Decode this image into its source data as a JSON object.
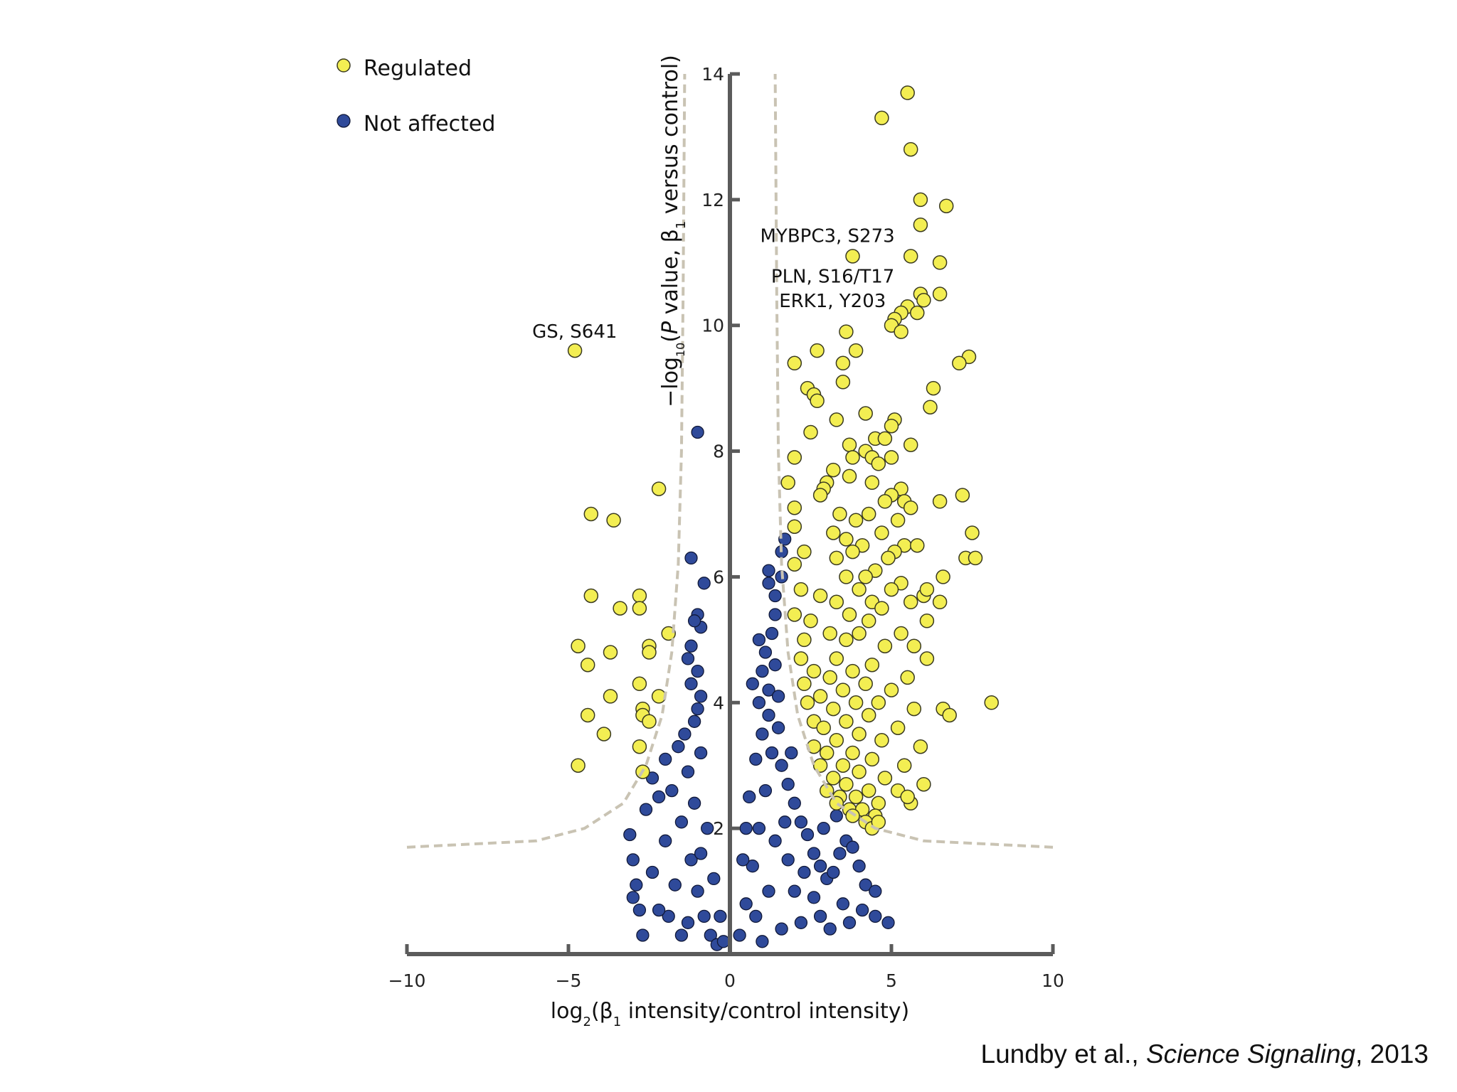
{
  "citation": {
    "authors": "Lundby et al., ",
    "journal": "Science Signaling",
    "year": ", 2013"
  },
  "chart_data": {
    "type": "scatter",
    "xlim": [
      -10,
      10
    ],
    "ylim": [
      0,
      14
    ],
    "x_ticks": [
      "−10",
      "−5",
      "0",
      "5",
      "10"
    ],
    "y_ticks": [
      "2",
      "4",
      "6",
      "8",
      "10",
      "12",
      "14"
    ],
    "xlabel": {
      "prefix": "log",
      "sub1": "2",
      "mid": "(β",
      "sub2": "1",
      "suffix": " intensity/control intensity)"
    },
    "ylabel": {
      "prefix": "−log",
      "sub1": "10",
      "mid1": "(",
      "italic": "P",
      "mid2": " value, β",
      "sub2": "1",
      "suffix": " versus control)"
    },
    "legend": {
      "position": "top-left",
      "entries": [
        "Regulated",
        "Not affected"
      ]
    },
    "colors": {
      "regulated": "#f3ee52",
      "not_affected": "#2f4a9a",
      "threshold": "#c9c3b3"
    },
    "annotations": [
      {
        "text": "GS, S641",
        "x": -4.8,
        "y": 9.6
      },
      {
        "text": "MYBPC3, S273",
        "x": 3.8,
        "y": 11.1
      },
      {
        "text": "PLN, S16/T17",
        "x": 5.9,
        "y": 10.5
      },
      {
        "text": "ERK1, Y203",
        "x": 5.6,
        "y": 10.2
      }
    ],
    "series": [
      {
        "name": "Regulated",
        "points": [
          [
            5.5,
            13.7
          ],
          [
            4.7,
            13.3
          ],
          [
            5.6,
            12.8
          ],
          [
            5.9,
            12.0
          ],
          [
            6.7,
            11.9
          ],
          [
            5.9,
            11.6
          ],
          [
            3.8,
            11.1
          ],
          [
            5.6,
            11.1
          ],
          [
            6.5,
            11.0
          ],
          [
            5.9,
            10.5
          ],
          [
            6.5,
            10.5
          ],
          [
            6.0,
            10.4
          ],
          [
            5.5,
            10.3
          ],
          [
            5.3,
            10.2
          ],
          [
            5.8,
            10.2
          ],
          [
            5.1,
            10.1
          ],
          [
            5.0,
            10.0
          ],
          [
            3.6,
            9.9
          ],
          [
            5.3,
            9.9
          ],
          [
            3.9,
            9.6
          ],
          [
            2.7,
            9.6
          ],
          [
            7.4,
            9.5
          ],
          [
            7.1,
            9.4
          ],
          [
            2.0,
            9.4
          ],
          [
            3.5,
            9.4
          ],
          [
            3.5,
            9.1
          ],
          [
            2.4,
            9.0
          ],
          [
            6.3,
            9.0
          ],
          [
            2.6,
            8.9
          ],
          [
            2.7,
            8.8
          ],
          [
            6.2,
            8.7
          ],
          [
            4.2,
            8.6
          ],
          [
            3.3,
            8.5
          ],
          [
            5.1,
            8.5
          ],
          [
            5.0,
            8.4
          ],
          [
            4.5,
            8.2
          ],
          [
            2.5,
            8.3
          ],
          [
            4.8,
            8.2
          ],
          [
            5.6,
            8.1
          ],
          [
            3.7,
            8.1
          ],
          [
            4.2,
            8.0
          ],
          [
            3.8,
            7.9
          ],
          [
            5.0,
            7.9
          ],
          [
            4.4,
            7.9
          ],
          [
            2.0,
            7.9
          ],
          [
            4.6,
            7.8
          ],
          [
            3.2,
            7.7
          ],
          [
            3.0,
            7.5
          ],
          [
            3.7,
            7.6
          ],
          [
            4.4,
            7.5
          ],
          [
            1.8,
            7.5
          ],
          [
            2.9,
            7.4
          ],
          [
            5.3,
            7.4
          ],
          [
            5.0,
            7.3
          ],
          [
            2.8,
            7.3
          ],
          [
            7.2,
            7.3
          ],
          [
            6.5,
            7.2
          ],
          [
            5.4,
            7.2
          ],
          [
            4.8,
            7.2
          ],
          [
            2.0,
            7.1
          ],
          [
            5.6,
            7.1
          ],
          [
            3.4,
            7.0
          ],
          [
            4.3,
            7.0
          ],
          [
            3.9,
            6.9
          ],
          [
            5.2,
            6.9
          ],
          [
            2.0,
            6.8
          ],
          [
            3.2,
            6.7
          ],
          [
            4.7,
            6.7
          ],
          [
            7.5,
            6.7
          ],
          [
            3.6,
            6.6
          ],
          [
            5.4,
            6.5
          ],
          [
            5.8,
            6.5
          ],
          [
            4.1,
            6.5
          ],
          [
            2.3,
            6.4
          ],
          [
            5.1,
            6.4
          ],
          [
            3.8,
            6.4
          ],
          [
            3.3,
            6.3
          ],
          [
            4.9,
            6.3
          ],
          [
            7.3,
            6.3
          ],
          [
            7.6,
            6.3
          ],
          [
            2.0,
            6.2
          ],
          [
            4.5,
            6.1
          ],
          [
            4.2,
            6.0
          ],
          [
            3.6,
            6.0
          ],
          [
            6.6,
            6.0
          ],
          [
            5.3,
            5.9
          ],
          [
            5.0,
            5.8
          ],
          [
            2.2,
            5.8
          ],
          [
            4.0,
            5.8
          ],
          [
            6.0,
            5.7
          ],
          [
            6.1,
            5.8
          ],
          [
            2.8,
            5.7
          ],
          [
            3.3,
            5.6
          ],
          [
            4.4,
            5.6
          ],
          [
            6.5,
            5.6
          ],
          [
            5.6,
            5.6
          ],
          [
            4.7,
            5.5
          ],
          [
            3.7,
            5.4
          ],
          [
            2.0,
            5.4
          ],
          [
            2.5,
            5.3
          ],
          [
            6.1,
            5.3
          ],
          [
            4.3,
            5.3
          ],
          [
            5.3,
            5.1
          ],
          [
            3.1,
            5.1
          ],
          [
            4.0,
            5.1
          ],
          [
            3.6,
            5.0
          ],
          [
            2.3,
            5.0
          ],
          [
            5.7,
            4.9
          ],
          [
            4.8,
            4.9
          ],
          [
            6.1,
            4.7
          ],
          [
            3.3,
            4.7
          ],
          [
            2.2,
            4.7
          ],
          [
            4.4,
            4.6
          ],
          [
            2.6,
            4.5
          ],
          [
            3.8,
            4.5
          ],
          [
            5.5,
            4.4
          ],
          [
            3.1,
            4.4
          ],
          [
            4.2,
            4.3
          ],
          [
            2.3,
            4.3
          ],
          [
            5.0,
            4.2
          ],
          [
            3.5,
            4.2
          ],
          [
            2.8,
            4.1
          ],
          [
            4.6,
            4.0
          ],
          [
            3.9,
            4.0
          ],
          [
            2.4,
            4.0
          ],
          [
            5.7,
            3.9
          ],
          [
            3.2,
            3.9
          ],
          [
            6.6,
            3.9
          ],
          [
            6.8,
            3.8
          ],
          [
            8.1,
            4.0
          ],
          [
            4.3,
            3.8
          ],
          [
            2.6,
            3.7
          ],
          [
            3.6,
            3.7
          ],
          [
            5.2,
            3.6
          ],
          [
            2.9,
            3.6
          ],
          [
            4.0,
            3.5
          ],
          [
            3.3,
            3.4
          ],
          [
            4.7,
            3.4
          ],
          [
            2.6,
            3.3
          ],
          [
            5.9,
            3.3
          ],
          [
            3.8,
            3.2
          ],
          [
            3.0,
            3.2
          ],
          [
            4.4,
            3.1
          ],
          [
            3.5,
            3.0
          ],
          [
            5.4,
            3.0
          ],
          [
            2.8,
            3.0
          ],
          [
            4.0,
            2.9
          ],
          [
            3.2,
            2.8
          ],
          [
            4.8,
            2.8
          ],
          [
            6.0,
            2.7
          ],
          [
            3.6,
            2.7
          ],
          [
            4.3,
            2.6
          ],
          [
            3.0,
            2.6
          ],
          [
            5.2,
            2.6
          ],
          [
            3.9,
            2.5
          ],
          [
            3.4,
            2.5
          ],
          [
            4.6,
            2.4
          ],
          [
            5.6,
            2.4
          ],
          [
            3.7,
            2.3
          ],
          [
            4.1,
            2.3
          ],
          [
            3.3,
            2.4
          ],
          [
            4.5,
            2.2
          ],
          [
            3.8,
            2.2
          ],
          [
            4.2,
            2.1
          ],
          [
            5.5,
            2.5
          ],
          [
            4.4,
            2.0
          ],
          [
            4.6,
            2.1
          ],
          [
            -4.8,
            9.6
          ],
          [
            -2.2,
            7.4
          ],
          [
            -4.3,
            7.0
          ],
          [
            -3.6,
            6.9
          ],
          [
            -2.8,
            5.7
          ],
          [
            -4.3,
            5.7
          ],
          [
            -3.4,
            5.5
          ],
          [
            -2.8,
            5.5
          ],
          [
            -1.9,
            5.1
          ],
          [
            -4.7,
            4.9
          ],
          [
            -2.5,
            4.9
          ],
          [
            -2.5,
            4.8
          ],
          [
            -3.7,
            4.8
          ],
          [
            -4.4,
            4.6
          ],
          [
            -2.8,
            4.3
          ],
          [
            -3.7,
            4.1
          ],
          [
            -2.2,
            4.1
          ],
          [
            -2.7,
            3.9
          ],
          [
            -4.4,
            3.8
          ],
          [
            -2.7,
            3.8
          ],
          [
            -2.5,
            3.7
          ],
          [
            -3.9,
            3.5
          ],
          [
            -2.8,
            3.3
          ],
          [
            -4.7,
            3.0
          ],
          [
            -2.7,
            2.9
          ]
        ]
      },
      {
        "name": "Not affected",
        "points": [
          [
            -1.0,
            8.3
          ],
          [
            -1.2,
            6.3
          ],
          [
            -0.8,
            5.9
          ],
          [
            -1.0,
            5.4
          ],
          [
            -0.9,
            5.2
          ],
          [
            1.7,
            6.6
          ],
          [
            1.6,
            6.4
          ],
          [
            1.2,
            6.1
          ],
          [
            1.6,
            6.0
          ],
          [
            1.2,
            5.9
          ],
          [
            1.4,
            5.7
          ],
          [
            0.9,
            5.0
          ],
          [
            1.3,
            5.1
          ],
          [
            1.4,
            5.4
          ],
          [
            -1.1,
            5.3
          ],
          [
            -1.2,
            4.9
          ],
          [
            -1.3,
            4.7
          ],
          [
            -1.0,
            4.5
          ],
          [
            -1.2,
            4.3
          ],
          [
            -0.9,
            4.1
          ],
          [
            -1.0,
            3.9
          ],
          [
            1.1,
            4.8
          ],
          [
            1.0,
            4.5
          ],
          [
            1.4,
            4.6
          ],
          [
            0.7,
            4.3
          ],
          [
            1.2,
            4.2
          ],
          [
            0.9,
            4.0
          ],
          [
            1.5,
            4.1
          ],
          [
            -3.0,
            1.5
          ],
          [
            -2.9,
            1.1
          ],
          [
            -2.8,
            0.7
          ],
          [
            -3.0,
            0.9
          ],
          [
            -2.7,
            0.3
          ],
          [
            -3.1,
            1.9
          ],
          [
            -2.4,
            1.3
          ],
          [
            -2.6,
            2.3
          ],
          [
            -2.2,
            2.5
          ],
          [
            -2.0,
            1.8
          ],
          [
            -2.4,
            2.8
          ],
          [
            -2.0,
            3.1
          ],
          [
            -1.8,
            2.6
          ],
          [
            -1.6,
            3.3
          ],
          [
            -1.4,
            3.5
          ],
          [
            -1.3,
            2.9
          ],
          [
            -1.5,
            2.1
          ],
          [
            -1.2,
            1.5
          ],
          [
            -1.0,
            1.0
          ],
          [
            -0.8,
            0.6
          ],
          [
            -0.6,
            0.3
          ],
          [
            -0.4,
            0.15
          ],
          [
            -1.7,
            1.1
          ],
          [
            -1.9,
            0.6
          ],
          [
            -1.1,
            2.4
          ],
          [
            -0.9,
            3.2
          ],
          [
            -0.7,
            2.0
          ],
          [
            -0.5,
            1.2
          ],
          [
            -0.3,
            0.6
          ],
          [
            -1.3,
            0.5
          ],
          [
            -0.9,
            1.6
          ],
          [
            -2.2,
            0.7
          ],
          [
            -1.5,
            0.3
          ],
          [
            -0.2,
            0.2
          ],
          [
            -1.1,
            3.7
          ],
          [
            0.3,
            0.3
          ],
          [
            0.5,
            0.8
          ],
          [
            0.7,
            1.4
          ],
          [
            0.9,
            2.0
          ],
          [
            1.1,
            2.6
          ],
          [
            1.3,
            3.2
          ],
          [
            1.5,
            3.6
          ],
          [
            0.6,
            2.5
          ],
          [
            0.8,
            3.1
          ],
          [
            1.0,
            3.5
          ],
          [
            1.2,
            3.8
          ],
          [
            1.6,
            3.0
          ],
          [
            1.8,
            2.7
          ],
          [
            2.0,
            2.4
          ],
          [
            2.2,
            2.1
          ],
          [
            2.4,
            1.9
          ],
          [
            2.6,
            1.6
          ],
          [
            2.8,
            1.4
          ],
          [
            3.0,
            1.2
          ],
          [
            3.2,
            1.3
          ],
          [
            3.4,
            1.6
          ],
          [
            3.6,
            1.8
          ],
          [
            3.8,
            1.7
          ],
          [
            4.0,
            1.4
          ],
          [
            4.2,
            1.1
          ],
          [
            4.5,
            1.0
          ],
          [
            4.5,
            0.6
          ],
          [
            4.9,
            0.5
          ],
          [
            3.5,
            0.8
          ],
          [
            2.8,
            0.6
          ],
          [
            2.2,
            0.5
          ],
          [
            1.6,
            0.4
          ],
          [
            1.0,
            0.2
          ],
          [
            2.6,
            0.9
          ],
          [
            3.1,
            0.4
          ],
          [
            1.4,
            1.8
          ],
          [
            1.8,
            1.5
          ],
          [
            2.0,
            1.0
          ],
          [
            1.2,
            1.0
          ],
          [
            0.8,
            0.6
          ],
          [
            1.7,
            2.1
          ],
          [
            2.3,
            1.3
          ],
          [
            2.9,
            2.0
          ],
          [
            3.3,
            2.2
          ],
          [
            3.7,
            0.5
          ],
          [
            4.1,
            0.7
          ],
          [
            1.9,
            3.2
          ],
          [
            0.4,
            1.5
          ],
          [
            0.5,
            2.0
          ]
        ]
      }
    ]
  }
}
